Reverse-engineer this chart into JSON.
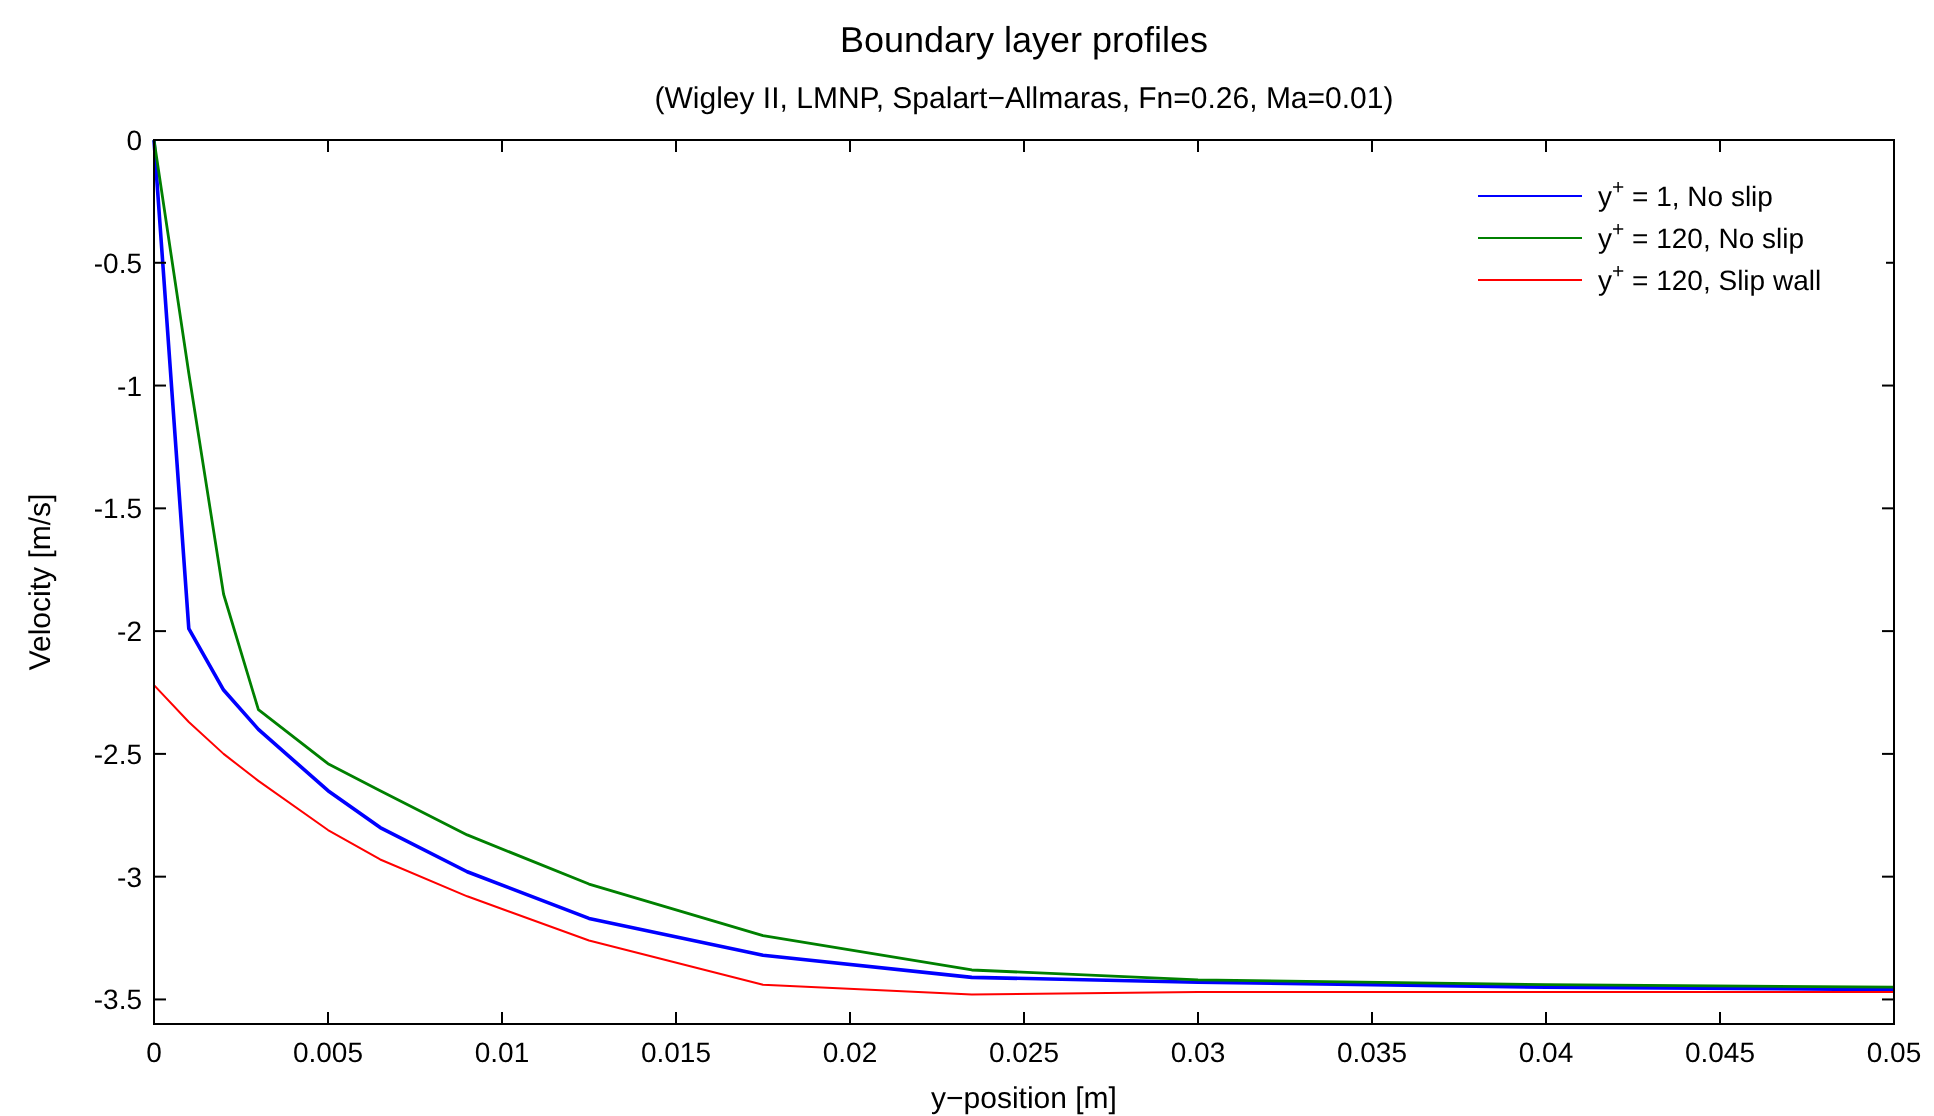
{
  "chart_data": {
    "type": "line",
    "title": "Boundary layer profiles",
    "subtitle": "(Wigley II, LMNP, Spalart−Allmaras, Fn=0.26, Ma=0.01)",
    "xlabel": "y−position [m]",
    "ylabel": "Velocity [m/s]",
    "x": [
      0,
      0.001,
      0.002,
      0.003,
      0.005,
      0.0065,
      0.009,
      0.0125,
      0.0175,
      0.0235,
      0.03,
      0.04,
      0.05
    ],
    "series": [
      {
        "name": "y$^{+}$ = 1, No slip",
        "color": "#0000ff",
        "values": [
          0,
          -1.99,
          -2.24,
          -2.4,
          -2.65,
          -2.8,
          -2.98,
          -3.17,
          -3.32,
          -3.41,
          -3.43,
          -3.45,
          -3.46
        ]
      },
      {
        "name": "y$^{+}$ = 120, No slip",
        "color": "#008000",
        "values": [
          0,
          -0.95,
          -1.85,
          -2.32,
          -2.54,
          -2.65,
          -2.83,
          -3.03,
          -3.24,
          -3.38,
          -3.42,
          -3.44,
          -3.45
        ]
      },
      {
        "name": "y$^{+}$ = 120, Slip wall",
        "color": "#ff0000",
        "values": [
          -2.22,
          -2.37,
          -2.5,
          -2.61,
          -2.81,
          -2.93,
          -3.08,
          -3.26,
          -3.44,
          -3.48,
          -3.47,
          -3.47,
          -3.47
        ]
      }
    ],
    "xlim": [
      0,
      0.05
    ],
    "xticks": [
      0,
      0.005,
      0.01,
      0.015,
      0.02,
      0.025,
      0.03,
      0.035,
      0.04,
      0.045,
      0.05
    ],
    "ylim": [
      -3.6,
      0
    ],
    "yticks": [
      -3.5,
      -3,
      -2.5,
      -2,
      -1.5,
      -1,
      -0.5,
      0
    ],
    "grid": false,
    "legend": "top right",
    "marker": "none",
    "line_style": "solid"
  }
}
